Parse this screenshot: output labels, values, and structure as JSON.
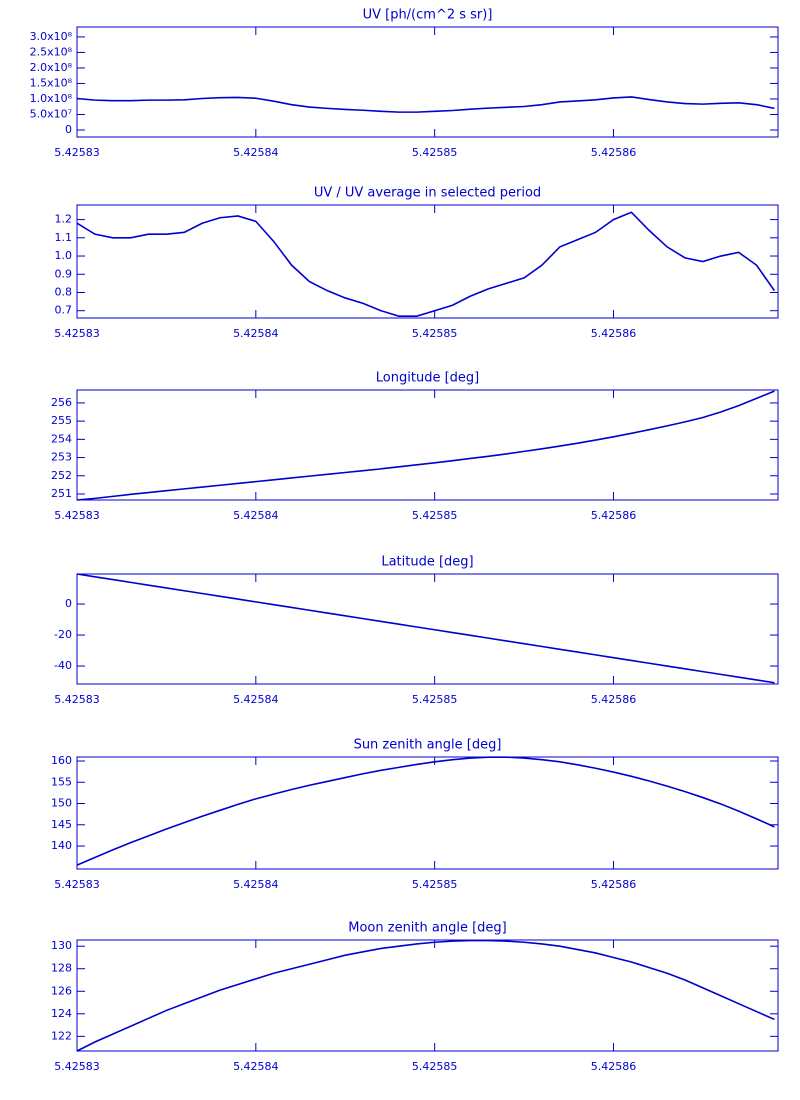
{
  "chart_data": [
    {
      "type": "line",
      "title": "UV [ph/(cm^2 s sr)]",
      "color": "#0000d0",
      "x": [
        5.42583,
        5.425831,
        5.425832,
        5.425833,
        5.425834,
        5.425835,
        5.425836,
        5.425837,
        5.425838,
        5.425839,
        5.42584,
        5.425841,
        5.425842,
        5.425843,
        5.425844,
        5.425845,
        5.425846,
        5.425847,
        5.425848,
        5.425849,
        5.42585,
        5.425851,
        5.425852,
        5.425853,
        5.425854,
        5.425855,
        5.425856,
        5.425857,
        5.425858,
        5.425859,
        5.42586,
        5.425861,
        5.425862,
        5.425863,
        5.425864,
        5.425865,
        5.425866,
        5.425867,
        5.425868,
        5.425869
      ],
      "values": [
        101500000,
        96300000,
        94600000,
        94600000,
        96300000,
        96300000,
        97200000,
        101500000,
        104100000,
        104900000,
        102300000,
        92900000,
        81700000,
        74000000,
        69700000,
        66200000,
        63600000,
        60200000,
        57600000,
        57600000,
        60200000,
        62800000,
        67100000,
        70500000,
        73100000,
        75700000,
        81700000,
        90300000,
        93700000,
        97200000,
        103200000,
        106600000,
        98000000,
        90300000,
        85100000,
        83400000,
        86000000,
        87700000,
        81700000,
        69700000
      ],
      "xlim": [
        5.42583,
        5.4258692
      ],
      "xticks": [
        5.42583,
        5.42584,
        5.42585,
        5.42586
      ],
      "ylim": [
        -22600000,
        332000000
      ],
      "yticks": [
        0,
        {
          "value": 50000000,
          "label": "5.0x10⁷"
        },
        {
          "value": 100000000,
          "label": "1.0x10⁸"
        },
        {
          "value": 150000000,
          "label": "1.5x10⁸"
        },
        {
          "value": 200000000,
          "label": "2.0x10⁸"
        },
        {
          "value": 250000000,
          "label": "2.5x10⁸"
        },
        {
          "value": 300000000,
          "label": "3.0x10⁸"
        }
      ]
    },
    {
      "type": "line",
      "title": "UV / UV average in selected period",
      "color": "#0000d0",
      "x": [
        5.42583,
        5.425831,
        5.425832,
        5.425833,
        5.425834,
        5.425835,
        5.425836,
        5.425837,
        5.425838,
        5.425839,
        5.42584,
        5.425841,
        5.425842,
        5.425843,
        5.425844,
        5.425845,
        5.425846,
        5.425847,
        5.425848,
        5.425849,
        5.42585,
        5.425851,
        5.425852,
        5.425853,
        5.425854,
        5.425855,
        5.425856,
        5.425857,
        5.425858,
        5.425859,
        5.42586,
        5.425861,
        5.425862,
        5.425863,
        5.425864,
        5.425865,
        5.425866,
        5.425867,
        5.425868,
        5.425869
      ],
      "values": [
        1.18,
        1.12,
        1.1,
        1.1,
        1.12,
        1.12,
        1.13,
        1.18,
        1.21,
        1.22,
        1.19,
        1.08,
        0.95,
        0.86,
        0.81,
        0.77,
        0.74,
        0.7,
        0.67,
        0.67,
        0.7,
        0.73,
        0.78,
        0.82,
        0.85,
        0.88,
        0.95,
        1.05,
        1.09,
        1.13,
        1.2,
        1.24,
        1.14,
        1.05,
        0.99,
        0.97,
        1.0,
        1.02,
        0.95,
        0.81
      ],
      "xlim": [
        5.42583,
        5.4258692
      ],
      "xticks": [
        5.42583,
        5.42584,
        5.42585,
        5.42586
      ],
      "ylim": [
        0.66,
        1.28
      ],
      "yticks": [
        0.7,
        0.8,
        0.9,
        {
          "value": 1,
          "label": "1.0"
        },
        1.1,
        1.2
      ]
    },
    {
      "type": "line",
      "title": "Longitude [deg]",
      "color": "#0000d0",
      "x": [
        5.42583,
        5.425831,
        5.425832,
        5.425833,
        5.425834,
        5.425835,
        5.425836,
        5.425837,
        5.425838,
        5.425839,
        5.42584,
        5.425841,
        5.425842,
        5.425843,
        5.425844,
        5.425845,
        5.425846,
        5.425847,
        5.425848,
        5.425849,
        5.42585,
        5.425851,
        5.425852,
        5.425853,
        5.425854,
        5.425855,
        5.425856,
        5.425857,
        5.425858,
        5.425859,
        5.42586,
        5.425861,
        5.425862,
        5.425863,
        5.425864,
        5.425865,
        5.425866,
        5.425867,
        5.425868,
        5.425869
      ],
      "values": [
        250.67,
        250.76,
        250.87,
        250.98,
        251.08,
        251.18,
        251.28,
        251.38,
        251.48,
        251.58,
        251.68,
        251.78,
        251.88,
        251.98,
        252.08,
        252.18,
        252.28,
        252.38,
        252.49,
        252.6,
        252.71,
        252.83,
        252.95,
        253.07,
        253.2,
        253.34,
        253.48,
        253.63,
        253.79,
        253.96,
        254.14,
        254.33,
        254.53,
        254.74,
        254.96,
        255.2,
        255.5,
        255.85,
        256.25,
        256.65
      ],
      "xlim": [
        5.42583,
        5.4258692
      ],
      "xticks": [
        5.42583,
        5.42584,
        5.42585,
        5.42586
      ],
      "ylim": [
        250.67,
        256.71
      ],
      "yticks": [
        251,
        252,
        253,
        254,
        255,
        256
      ]
    },
    {
      "type": "line",
      "title": "Latitude [deg]",
      "color": "#0000d0",
      "x": [
        5.42583,
        5.425831,
        5.425832,
        5.425833,
        5.425834,
        5.425835,
        5.425836,
        5.425837,
        5.425838,
        5.425839,
        5.42584,
        5.425841,
        5.425842,
        5.425843,
        5.425844,
        5.425845,
        5.425846,
        5.425847,
        5.425848,
        5.425849,
        5.42585,
        5.425851,
        5.425852,
        5.425853,
        5.425854,
        5.425855,
        5.425856,
        5.425857,
        5.425858,
        5.425859,
        5.42586,
        5.425861,
        5.425862,
        5.425863,
        5.425864,
        5.425865,
        5.425866,
        5.425867,
        5.425868,
        5.425869
      ],
      "values": [
        19.4,
        17.6,
        15.8,
        14,
        12.2,
        10.4,
        8.6,
        6.8,
        5,
        3.2,
        1.4,
        -0.4,
        -2.2,
        -4,
        -5.8,
        -7.6,
        -9.4,
        -11.2,
        -13,
        -14.8,
        -16.6,
        -18.4,
        -20.2,
        -22,
        -23.8,
        -25.6,
        -27.4,
        -29.2,
        -31,
        -32.8,
        -34.6,
        -36.4,
        -38.2,
        -40,
        -41.8,
        -43.6,
        -45.4,
        -47.2,
        -49,
        -50.8
      ],
      "xlim": [
        5.42583,
        5.4258692
      ],
      "xticks": [
        5.42583,
        5.42584,
        5.42585,
        5.42586
      ],
      "ylim": [
        -51.6,
        19.4
      ],
      "yticks": [
        -40,
        -20,
        0
      ]
    },
    {
      "type": "line",
      "title": "Sun zenith angle [deg]",
      "color": "#0000d0",
      "x": [
        5.42583,
        5.425831,
        5.425832,
        5.425833,
        5.425834,
        5.425835,
        5.425836,
        5.425837,
        5.425838,
        5.425839,
        5.42584,
        5.425841,
        5.425842,
        5.425843,
        5.425844,
        5.425845,
        5.425846,
        5.425847,
        5.425848,
        5.425849,
        5.42585,
        5.425851,
        5.425852,
        5.425853,
        5.425854,
        5.425855,
        5.425856,
        5.425857,
        5.425858,
        5.425859,
        5.42586,
        5.425861,
        5.425862,
        5.425863,
        5.425864,
        5.425865,
        5.425866,
        5.425867,
        5.425868,
        5.425869
      ],
      "values": [
        135.5,
        137.3,
        139.1,
        140.8,
        142.4,
        144.0,
        145.5,
        147.0,
        148.4,
        149.8,
        151.1,
        152.2,
        153.3,
        154.3,
        155.2,
        156.1,
        157.0,
        157.8,
        158.5,
        159.2,
        159.8,
        160.3,
        160.7,
        160.9,
        160.9,
        160.7,
        160.3,
        159.8,
        159.1,
        158.3,
        157.4,
        156.4,
        155.3,
        154.1,
        152.8,
        151.4,
        149.9,
        148.2,
        146.4,
        144.5
      ],
      "xlim": [
        5.42583,
        5.4258692
      ],
      "xticks": [
        5.42583,
        5.42584,
        5.42585,
        5.42586
      ],
      "ylim": [
        134.6,
        160.94
      ],
      "yticks": [
        140,
        145,
        150,
        155,
        160
      ]
    },
    {
      "type": "line",
      "title": "Moon zenith angle [deg]",
      "color": "#0000d0",
      "x": [
        5.42583,
        5.425831,
        5.425832,
        5.425833,
        5.425834,
        5.425835,
        5.425836,
        5.425837,
        5.425838,
        5.425839,
        5.42584,
        5.425841,
        5.425842,
        5.425843,
        5.425844,
        5.425845,
        5.425846,
        5.425847,
        5.425848,
        5.425849,
        5.42585,
        5.425851,
        5.425852,
        5.425853,
        5.425854,
        5.425855,
        5.425856,
        5.425857,
        5.425858,
        5.425859,
        5.42586,
        5.425861,
        5.425862,
        5.425863,
        5.425864,
        5.425865,
        5.425866,
        5.425867,
        5.425868,
        5.425869
      ],
      "values": [
        120.7,
        121.5,
        122.2,
        122.9,
        123.6,
        124.3,
        124.9,
        125.5,
        126.1,
        126.6,
        127.1,
        127.6,
        128.0,
        128.4,
        128.8,
        129.2,
        129.5,
        129.8,
        130.0,
        130.2,
        130.35,
        130.45,
        130.5,
        130.5,
        130.45,
        130.35,
        130.2,
        130.0,
        129.7,
        129.4,
        129.0,
        128.6,
        128.1,
        127.6,
        127.0,
        126.3,
        125.6,
        124.9,
        124.2,
        123.5
      ],
      "xlim": [
        5.42583,
        5.4258692
      ],
      "xticks": [
        5.42583,
        5.42584,
        5.42585,
        5.42586
      ],
      "ylim": [
        120.7,
        130.55
      ],
      "yticks": [
        122,
        124,
        126,
        128,
        130
      ]
    }
  ]
}
